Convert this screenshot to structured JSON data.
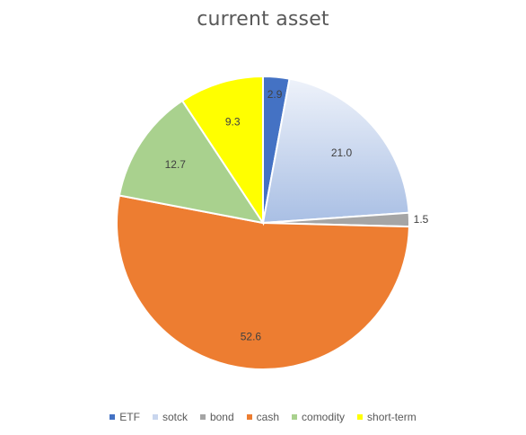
{
  "chart_data": {
    "type": "pie",
    "title": "current asset",
    "categories": [
      "ETF",
      "sotck",
      "bond",
      "cash",
      "comodity",
      "short-term"
    ],
    "values": [
      2.9,
      21.0,
      1.5,
      52.6,
      12.7,
      9.3
    ],
    "data_labels": [
      "2.9",
      "21.0",
      "1.5",
      "52.6",
      "12.7",
      "9.3"
    ],
    "colors": [
      "#4472C4",
      "#C9D6EE",
      "#A5A5A5",
      "#ED7D31",
      "#A9D18E",
      "#FFFF00"
    ],
    "legend_position": "bottom"
  }
}
